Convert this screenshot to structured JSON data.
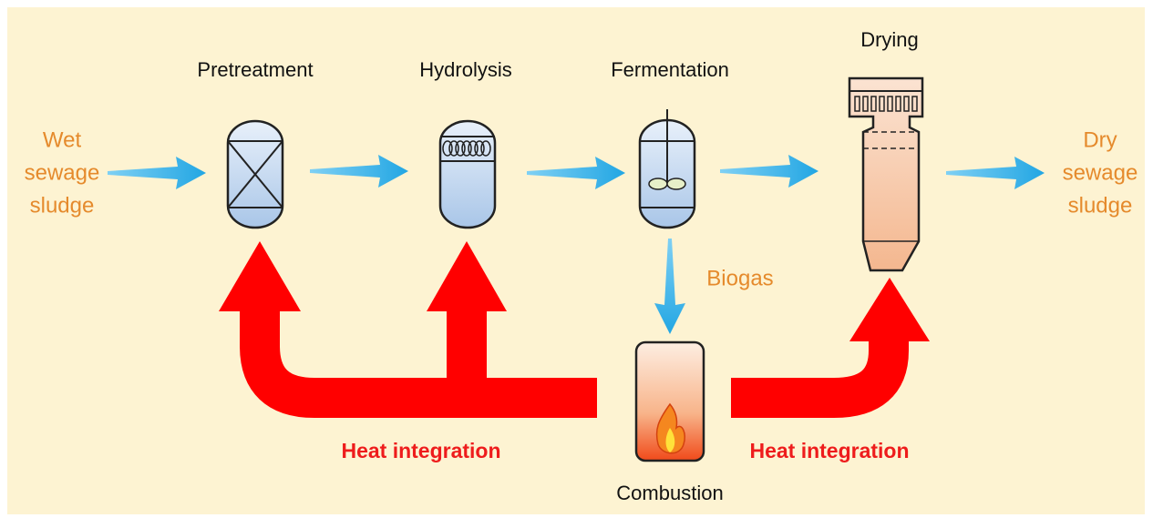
{
  "input": {
    "lines": [
      "Wet",
      "sewage",
      "sludge"
    ]
  },
  "output": {
    "lines": [
      "Dry",
      "sewage",
      "sludge"
    ]
  },
  "stages": [
    {
      "label": "Pretreatment"
    },
    {
      "label": "Hydrolysis"
    },
    {
      "label": "Fermentation"
    },
    {
      "label": "Drying"
    }
  ],
  "biogas": "Biogas",
  "combustion": "Combustion",
  "heat_labels": [
    "Heat integration",
    "Heat integration"
  ]
}
